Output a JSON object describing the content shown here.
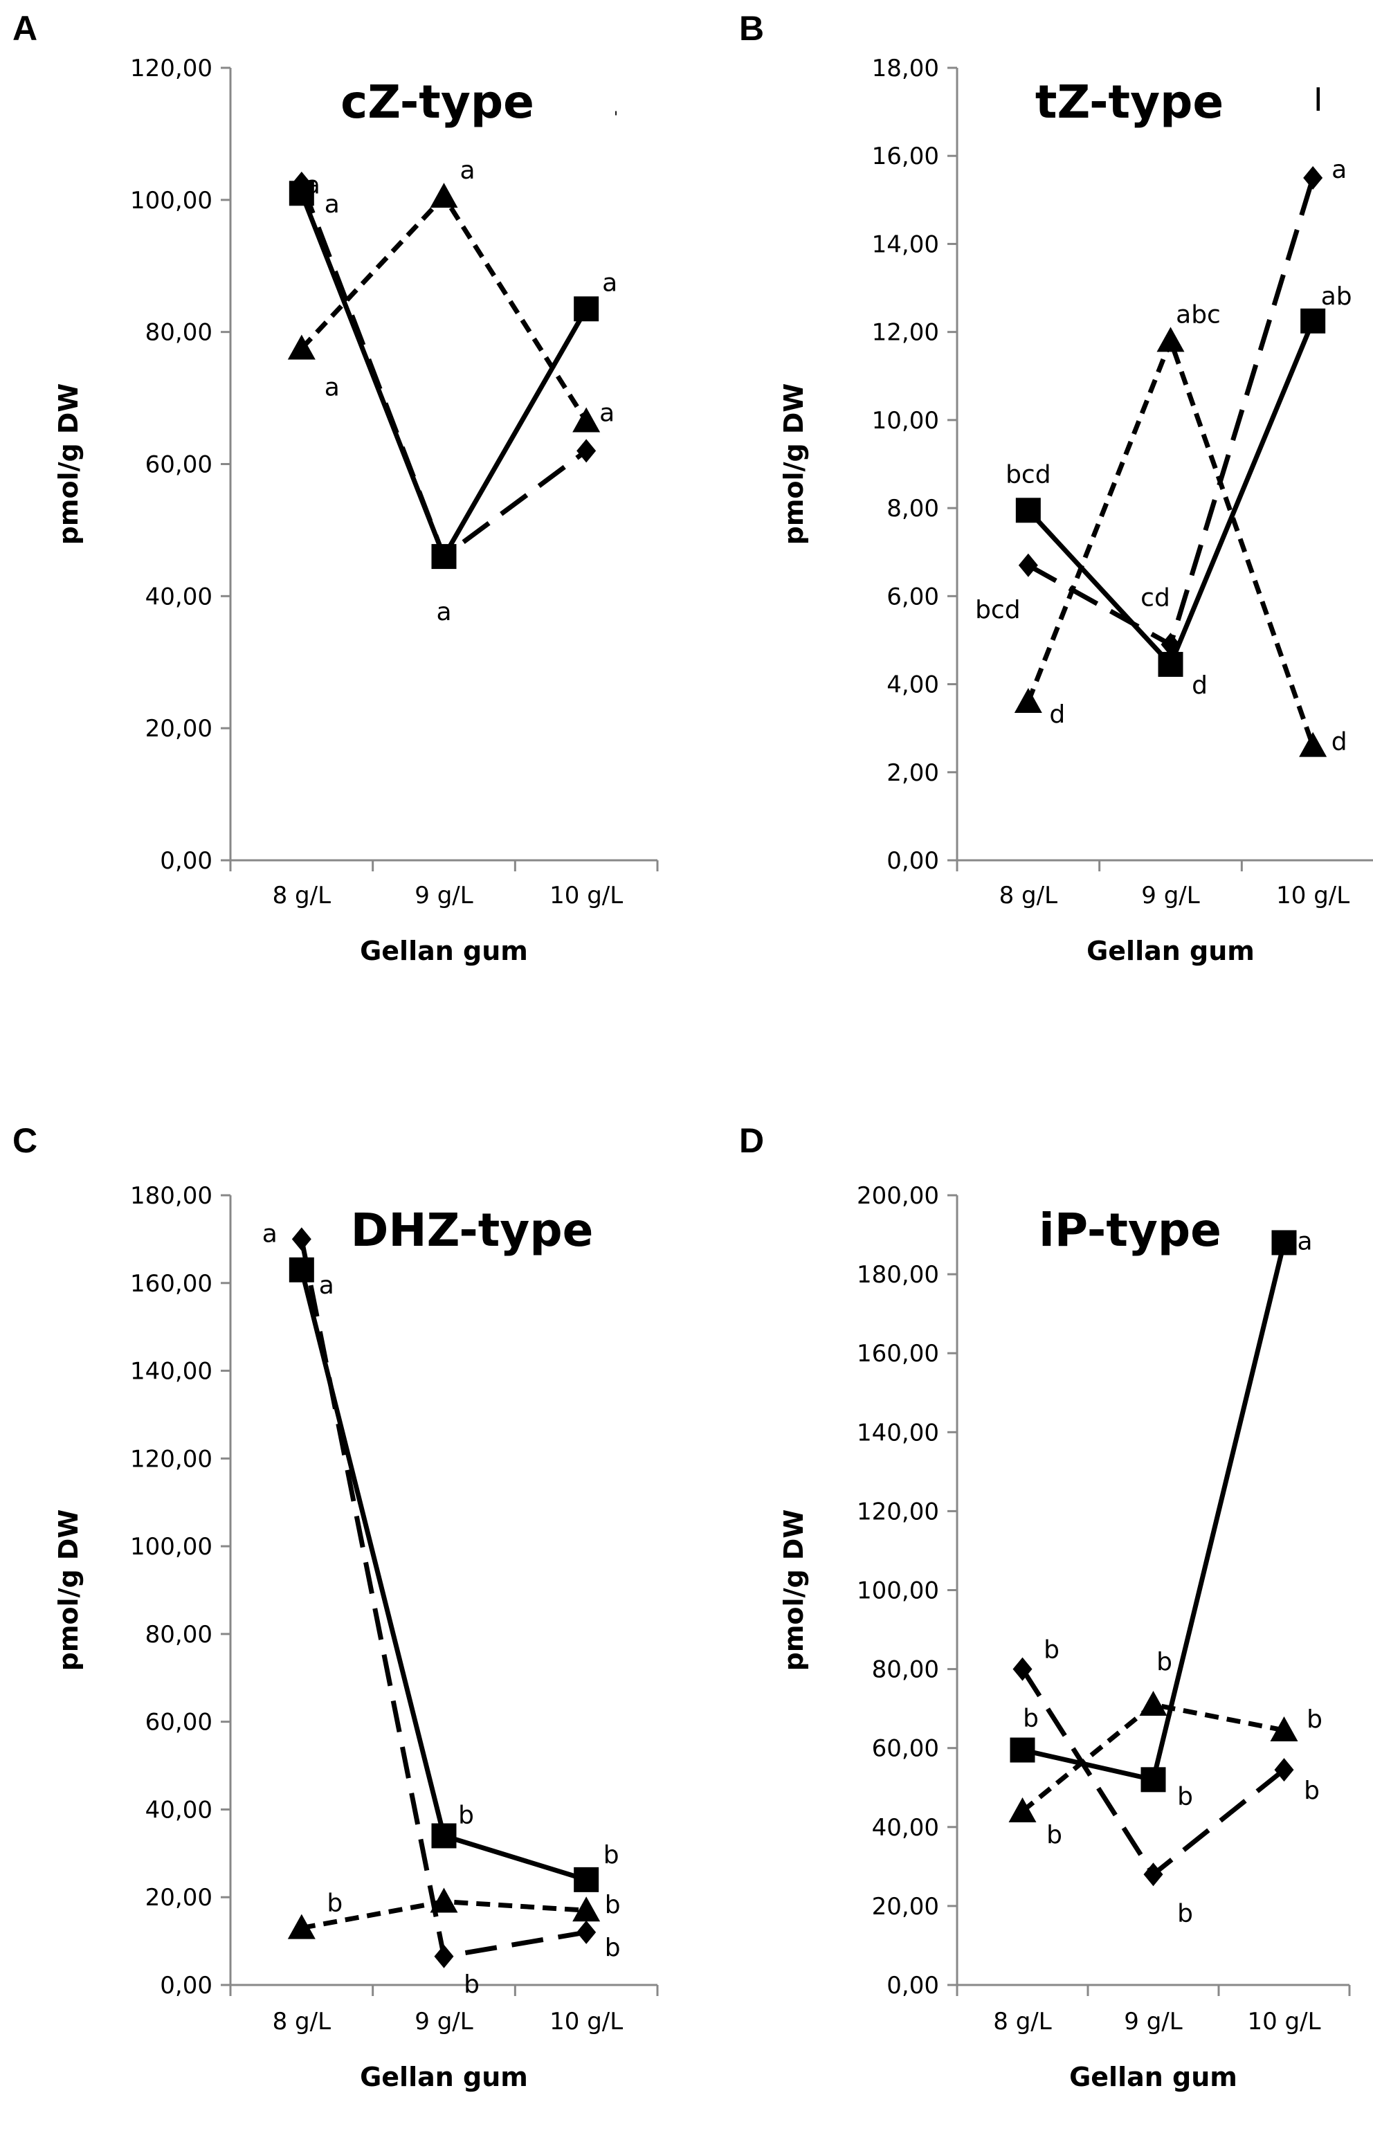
{
  "panel_labels": [
    "A",
    "B",
    "C",
    "D"
  ],
  "stray_marks": [
    "I",
    "'"
  ],
  "chart_data": [
    {
      "panel": "A",
      "type": "line",
      "title": "cZ-type",
      "xlabel": "Gellan gum",
      "ylabel": "pmol/g DW",
      "categories": [
        "8 g/L",
        "9 g/L",
        "10 g/L"
      ],
      "ylim": [
        0,
        120
      ],
      "yticks": [
        "0,00",
        "20,00",
        "40,00",
        "60,00",
        "80,00",
        "100,00",
        "120,00"
      ],
      "series": [
        {
          "marker": "square",
          "dash": "solid",
          "values": [
            101,
            46,
            83.5
          ],
          "labels": [
            "a",
            "a",
            "a"
          ]
        },
        {
          "marker": "diamond",
          "dash": "long",
          "values": [
            102.5,
            46,
            62
          ],
          "labels": [
            "a",
            "a",
            ""
          ]
        },
        {
          "marker": "triangle",
          "dash": "short",
          "values": [
            77.5,
            100.5,
            66.5
          ],
          "labels": [
            "a",
            "a",
            "a"
          ]
        }
      ]
    },
    {
      "panel": "B",
      "type": "line",
      "title": "tZ-type",
      "xlabel": "Gellan gum",
      "ylabel": "pmol/g DW",
      "categories": [
        "8 g/L",
        "9 g/L",
        "10 g/L"
      ],
      "ylim": [
        0,
        18
      ],
      "yticks": [
        "0,00",
        "2,00",
        "4,00",
        "6,00",
        "8,00",
        "10,00",
        "12,00",
        "14,00",
        "16,00",
        "18,00"
      ],
      "series": [
        {
          "marker": "square",
          "dash": "solid",
          "values": [
            7.95,
            4.45,
            12.25
          ],
          "labels": [
            "bcd",
            "d",
            "ab"
          ]
        },
        {
          "marker": "diamond",
          "dash": "long",
          "values": [
            6.7,
            4.9,
            15.5
          ],
          "labels": [
            "bcd",
            "cd",
            "a"
          ]
        },
        {
          "marker": "triangle",
          "dash": "short",
          "values": [
            3.6,
            11.8,
            2.6
          ],
          "labels": [
            "d",
            "abc",
            "d"
          ]
        }
      ]
    },
    {
      "panel": "C",
      "type": "line",
      "title": "DHZ-type",
      "xlabel": "Gellan gum",
      "ylabel": "pmol/g DW",
      "categories": [
        "8 g/L",
        "9 g/L",
        "10 g/L"
      ],
      "ylim": [
        0,
        180
      ],
      "yticks": [
        "0,00",
        "20,00",
        "40,00",
        "60,00",
        "80,00",
        "100,00",
        "120,00",
        "140,00",
        "160,00",
        "180,00"
      ],
      "series": [
        {
          "marker": "square",
          "dash": "solid",
          "values": [
            163,
            34,
            24
          ],
          "labels": [
            "a",
            "b",
            "b"
          ]
        },
        {
          "marker": "diamond",
          "dash": "long",
          "values": [
            170,
            6.5,
            12
          ],
          "labels": [
            "a",
            "b",
            "b"
          ]
        },
        {
          "marker": "triangle",
          "dash": "short",
          "values": [
            13,
            19,
            17
          ],
          "labels": [
            "b",
            "",
            "b"
          ]
        }
      ]
    },
    {
      "panel": "D",
      "type": "line",
      "title": "iP-type",
      "xlabel": "Gellan gum",
      "ylabel": "pmol/g DW",
      "categories": [
        "8 g/L",
        "9 g/L",
        "10 g/L"
      ],
      "ylim": [
        0,
        200
      ],
      "yticks": [
        "0,00",
        "20,00",
        "40,00",
        "60,00",
        "80,00",
        "100,00",
        "120,00",
        "140,00",
        "160,00",
        "180,00",
        "200,00"
      ],
      "series": [
        {
          "marker": "square",
          "dash": "solid",
          "values": [
            59.5,
            52,
            188
          ],
          "labels": [
            "b",
            "b",
            "a"
          ]
        },
        {
          "marker": "diamond",
          "dash": "long",
          "values": [
            80,
            28,
            54.5
          ],
          "labels": [
            "b",
            "b",
            "b"
          ]
        },
        {
          "marker": "triangle",
          "dash": "short",
          "values": [
            44,
            71,
            64.5
          ],
          "labels": [
            "b",
            "b",
            "b"
          ]
        }
      ]
    }
  ]
}
